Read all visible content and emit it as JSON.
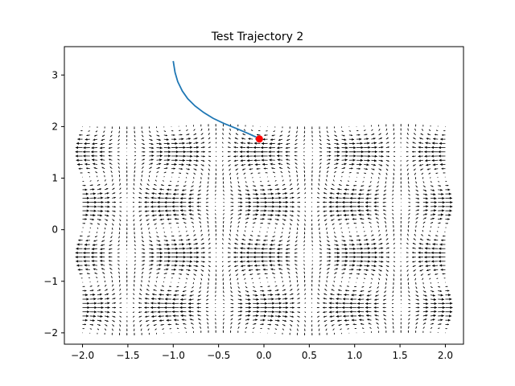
{
  "chart_data": {
    "type": "quiver",
    "title": "Test Trajectory 2",
    "xlabel": "",
    "ylabel": "",
    "xlim": [
      -2.2,
      2.2
    ],
    "ylim": [
      -2.22,
      3.55
    ],
    "xticks": [
      -2.0,
      -1.5,
      -1.0,
      -0.5,
      0.0,
      0.5,
      1.0,
      1.5,
      2.0
    ],
    "xtick_labels": [
      "−2.0",
      "−1.5",
      "−1.0",
      "−0.5",
      "0.0",
      "0.5",
      "1.0",
      "1.5",
      "2.0"
    ],
    "yticks": [
      -2,
      -1,
      0,
      1,
      2,
      3
    ],
    "ytick_labels": [
      "−2",
      "−1",
      "0",
      "1",
      "2",
      "3"
    ],
    "grid": false,
    "vector_field": {
      "x_range": [
        -2.0,
        2.0
      ],
      "y_range": [
        -2.0,
        2.0
      ],
      "nx": 50,
      "ny": 50,
      "color": "#000000",
      "description_u": "horizontal component shaped like cos(pi*x)*sin(pi*y)-style bands",
      "u_amplitude": 1.0,
      "v_amplitude": 0.35
    },
    "trajectory": {
      "color": "#1f77b4",
      "points": [
        [
          -1.0,
          3.27
        ],
        [
          -0.98,
          3.05
        ],
        [
          -0.95,
          2.87
        ],
        [
          -0.9,
          2.69
        ],
        [
          -0.84,
          2.54
        ],
        [
          -0.76,
          2.4
        ],
        [
          -0.67,
          2.28
        ],
        [
          -0.56,
          2.16
        ],
        [
          -0.44,
          2.06
        ],
        [
          -0.3,
          1.96
        ],
        [
          -0.18,
          1.87
        ],
        [
          -0.08,
          1.79
        ],
        [
          -0.05,
          1.76
        ]
      ]
    },
    "end_point": {
      "x": -0.05,
      "y": 1.76,
      "color": "#ff0000"
    }
  }
}
